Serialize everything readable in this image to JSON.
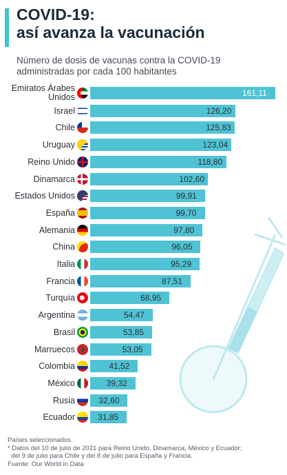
{
  "header": {
    "title_line1": "COVID-19:",
    "title_line2": "así avanza la vacunación",
    "subtitle_line1": "Número de dosis de vacunas contra la COVID-19",
    "subtitle_line2": "administradas por cada 100 habitantes"
  },
  "colors": {
    "accent": "#3ec3d5",
    "bar": "#4fc3d4",
    "text": "#2b2f36",
    "title": "#1a2a3a"
  },
  "chart_data": {
    "type": "bar",
    "orientation": "horizontal",
    "categories": [
      "Emiratos Árabes Unidos",
      "Israel",
      "Chile",
      "Uruguay",
      "Reino Unido",
      "Dinamarca",
      "Estados Unidos",
      "España",
      "Alemania",
      "China",
      "Italia",
      "Francia",
      "Turquía",
      "Argentina",
      "Brasil",
      "Marruecos",
      "Colombia",
      "México",
      "Rusia",
      "Ecuador"
    ],
    "value_labels": [
      "161,11",
      "126,20",
      "125,83",
      "123,04",
      "118,80",
      "102,60",
      "99,91",
      "99,70",
      "97,80",
      "96,05",
      "95,29",
      "87,51",
      "68,95",
      "54,47",
      "53,85",
      "53,05",
      "41,52",
      "39,32",
      "32,60",
      "31,85"
    ],
    "values": [
      161.11,
      126.2,
      125.83,
      123.04,
      118.8,
      102.6,
      99.91,
      99.7,
      97.8,
      96.05,
      95.29,
      87.51,
      68.95,
      54.47,
      53.85,
      53.05,
      41.52,
      39.32,
      32.6,
      31.85
    ],
    "flag_icons": [
      "uae-flag-icon",
      "israel-flag-icon",
      "chile-flag-icon",
      "uruguay-flag-icon",
      "uk-flag-icon",
      "denmark-flag-icon",
      "usa-flag-icon",
      "spain-flag-icon",
      "germany-flag-icon",
      "china-flag-icon",
      "italy-flag-icon",
      "france-flag-icon",
      "turkey-flag-icon",
      "argentina-flag-icon",
      "brazil-flag-icon",
      "morocco-flag-icon",
      "colombia-flag-icon",
      "mexico-flag-icon",
      "russia-flag-icon",
      "ecuador-flag-icon"
    ],
    "title": "COVID-19: así avanza la vacunación",
    "xlabel": "",
    "ylabel": "",
    "xlim": [
      0,
      161.11
    ],
    "grid": false
  },
  "footer": {
    "line1": "Países seleccionados.",
    "line2": "* Datos del 10 de julio de 2021 para Reino Unido, Dinamarca, México y Ecuador;",
    "line3": "  del 9 de julio para Chile y del 8 de julio para España y Francia.",
    "line4": "Fuente: Our World in Data"
  }
}
